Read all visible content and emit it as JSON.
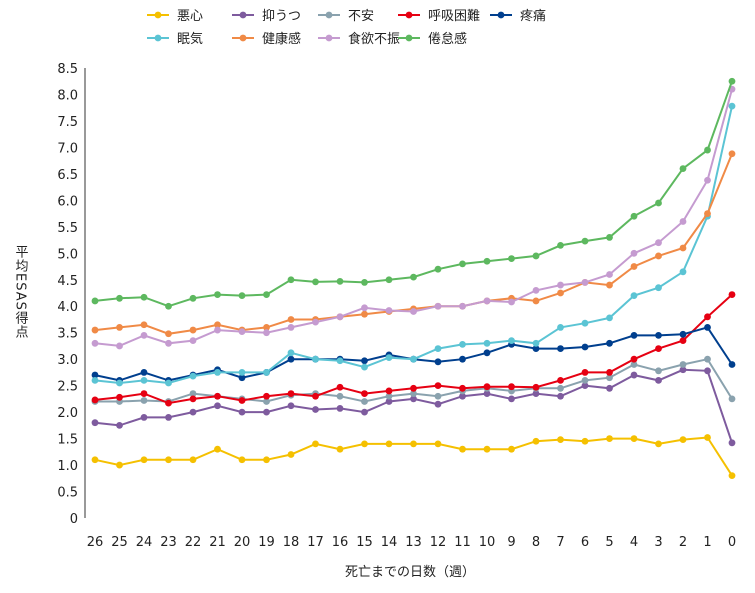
{
  "chart_data": {
    "type": "line",
    "xlabel": "死亡までの日数（週）",
    "ylabel": "平均ESAS得点",
    "ylim": [
      0,
      8.5
    ],
    "yticks": [
      "0",
      "0.5",
      "1.0",
      "1.5",
      "2.0",
      "2.5",
      "3.0",
      "3.5",
      "4.0",
      "4.5",
      "5.0",
      "5.5",
      "6.0",
      "6.5",
      "7.0",
      "7.5",
      "8.0",
      "8.5"
    ],
    "categories": [
      "26",
      "25",
      "24",
      "23",
      "22",
      "21",
      "20",
      "19",
      "18",
      "17",
      "16",
      "15",
      "14",
      "13",
      "12",
      "11",
      "10",
      "9",
      "8",
      "7",
      "6",
      "5",
      "4",
      "3",
      "2",
      "1",
      "0"
    ],
    "grid": false,
    "legend_position": "top",
    "series": [
      {
        "name": "悪心",
        "color": "#F5C000",
        "values": [
          1.1,
          1.0,
          1.1,
          1.1,
          1.1,
          1.3,
          1.1,
          1.1,
          1.2,
          1.4,
          1.3,
          1.4,
          1.4,
          1.4,
          1.4,
          1.3,
          1.3,
          1.3,
          1.45,
          1.48,
          1.45,
          1.5,
          1.5,
          1.4,
          1.48,
          1.52,
          0.8
        ]
      },
      {
        "name": "抑うつ",
        "color": "#7E5B9E",
        "values": [
          1.8,
          1.75,
          1.9,
          1.9,
          2.0,
          2.12,
          2.0,
          2.0,
          2.12,
          2.05,
          2.07,
          2.0,
          2.2,
          2.25,
          2.15,
          2.3,
          2.35,
          2.25,
          2.35,
          2.3,
          2.5,
          2.45,
          2.7,
          2.6,
          2.8,
          2.78,
          1.42
        ]
      },
      {
        "name": "不安",
        "color": "#8AA2AE",
        "values": [
          2.2,
          2.2,
          2.22,
          2.2,
          2.35,
          2.3,
          2.25,
          2.2,
          2.32,
          2.35,
          2.3,
          2.2,
          2.3,
          2.35,
          2.3,
          2.4,
          2.45,
          2.4,
          2.45,
          2.45,
          2.6,
          2.65,
          2.9,
          2.78,
          2.9,
          3.0,
          2.25
        ]
      },
      {
        "name": "呼吸困難",
        "color": "#E60012",
        "values": [
          2.23,
          2.28,
          2.35,
          2.17,
          2.25,
          2.3,
          2.22,
          2.3,
          2.35,
          2.3,
          2.47,
          2.35,
          2.4,
          2.45,
          2.5,
          2.45,
          2.48,
          2.48,
          2.47,
          2.6,
          2.75,
          2.75,
          3.0,
          3.2,
          3.35,
          3.8,
          4.22
        ]
      },
      {
        "name": "疼痛",
        "color": "#003F8E",
        "values": [
          2.7,
          2.6,
          2.75,
          2.6,
          2.7,
          2.8,
          2.65,
          2.75,
          3.0,
          3.0,
          3.0,
          2.97,
          3.08,
          3.0,
          2.95,
          3.0,
          3.12,
          3.28,
          3.2,
          3.2,
          3.23,
          3.3,
          3.45,
          3.45,
          3.47,
          3.6,
          2.9
        ]
      },
      {
        "name": "眠気",
        "color": "#5BC4D4",
        "values": [
          2.6,
          2.55,
          2.6,
          2.55,
          2.68,
          2.75,
          2.75,
          2.75,
          3.12,
          3.0,
          2.97,
          2.85,
          3.03,
          3.0,
          3.2,
          3.28,
          3.3,
          3.35,
          3.3,
          3.6,
          3.68,
          3.78,
          4.2,
          4.35,
          4.65,
          5.7,
          7.78
        ]
      },
      {
        "name": "健康感",
        "color": "#F08A46",
        "values": [
          3.55,
          3.6,
          3.65,
          3.48,
          3.55,
          3.65,
          3.55,
          3.6,
          3.75,
          3.75,
          3.8,
          3.85,
          3.9,
          3.95,
          4.0,
          4.0,
          4.1,
          4.15,
          4.1,
          4.25,
          4.45,
          4.4,
          4.75,
          4.95,
          5.1,
          5.75,
          6.88
        ]
      },
      {
        "name": "食欲不振",
        "color": "#C59BD0",
        "values": [
          3.3,
          3.25,
          3.45,
          3.3,
          3.35,
          3.55,
          3.52,
          3.5,
          3.6,
          3.7,
          3.8,
          3.97,
          3.92,
          3.9,
          4.0,
          4.0,
          4.1,
          4.08,
          4.3,
          4.4,
          4.45,
          4.6,
          5.0,
          5.2,
          5.6,
          6.38,
          8.1
        ]
      },
      {
        "name": "倦怠感",
        "color": "#5DB85F",
        "values": [
          4.1,
          4.15,
          4.17,
          4.0,
          4.15,
          4.22,
          4.2,
          4.22,
          4.5,
          4.46,
          4.47,
          4.45,
          4.5,
          4.55,
          4.7,
          4.8,
          4.85,
          4.9,
          4.95,
          5.15,
          5.23,
          5.3,
          5.7,
          5.95,
          6.6,
          6.95,
          8.25
        ]
      }
    ]
  }
}
